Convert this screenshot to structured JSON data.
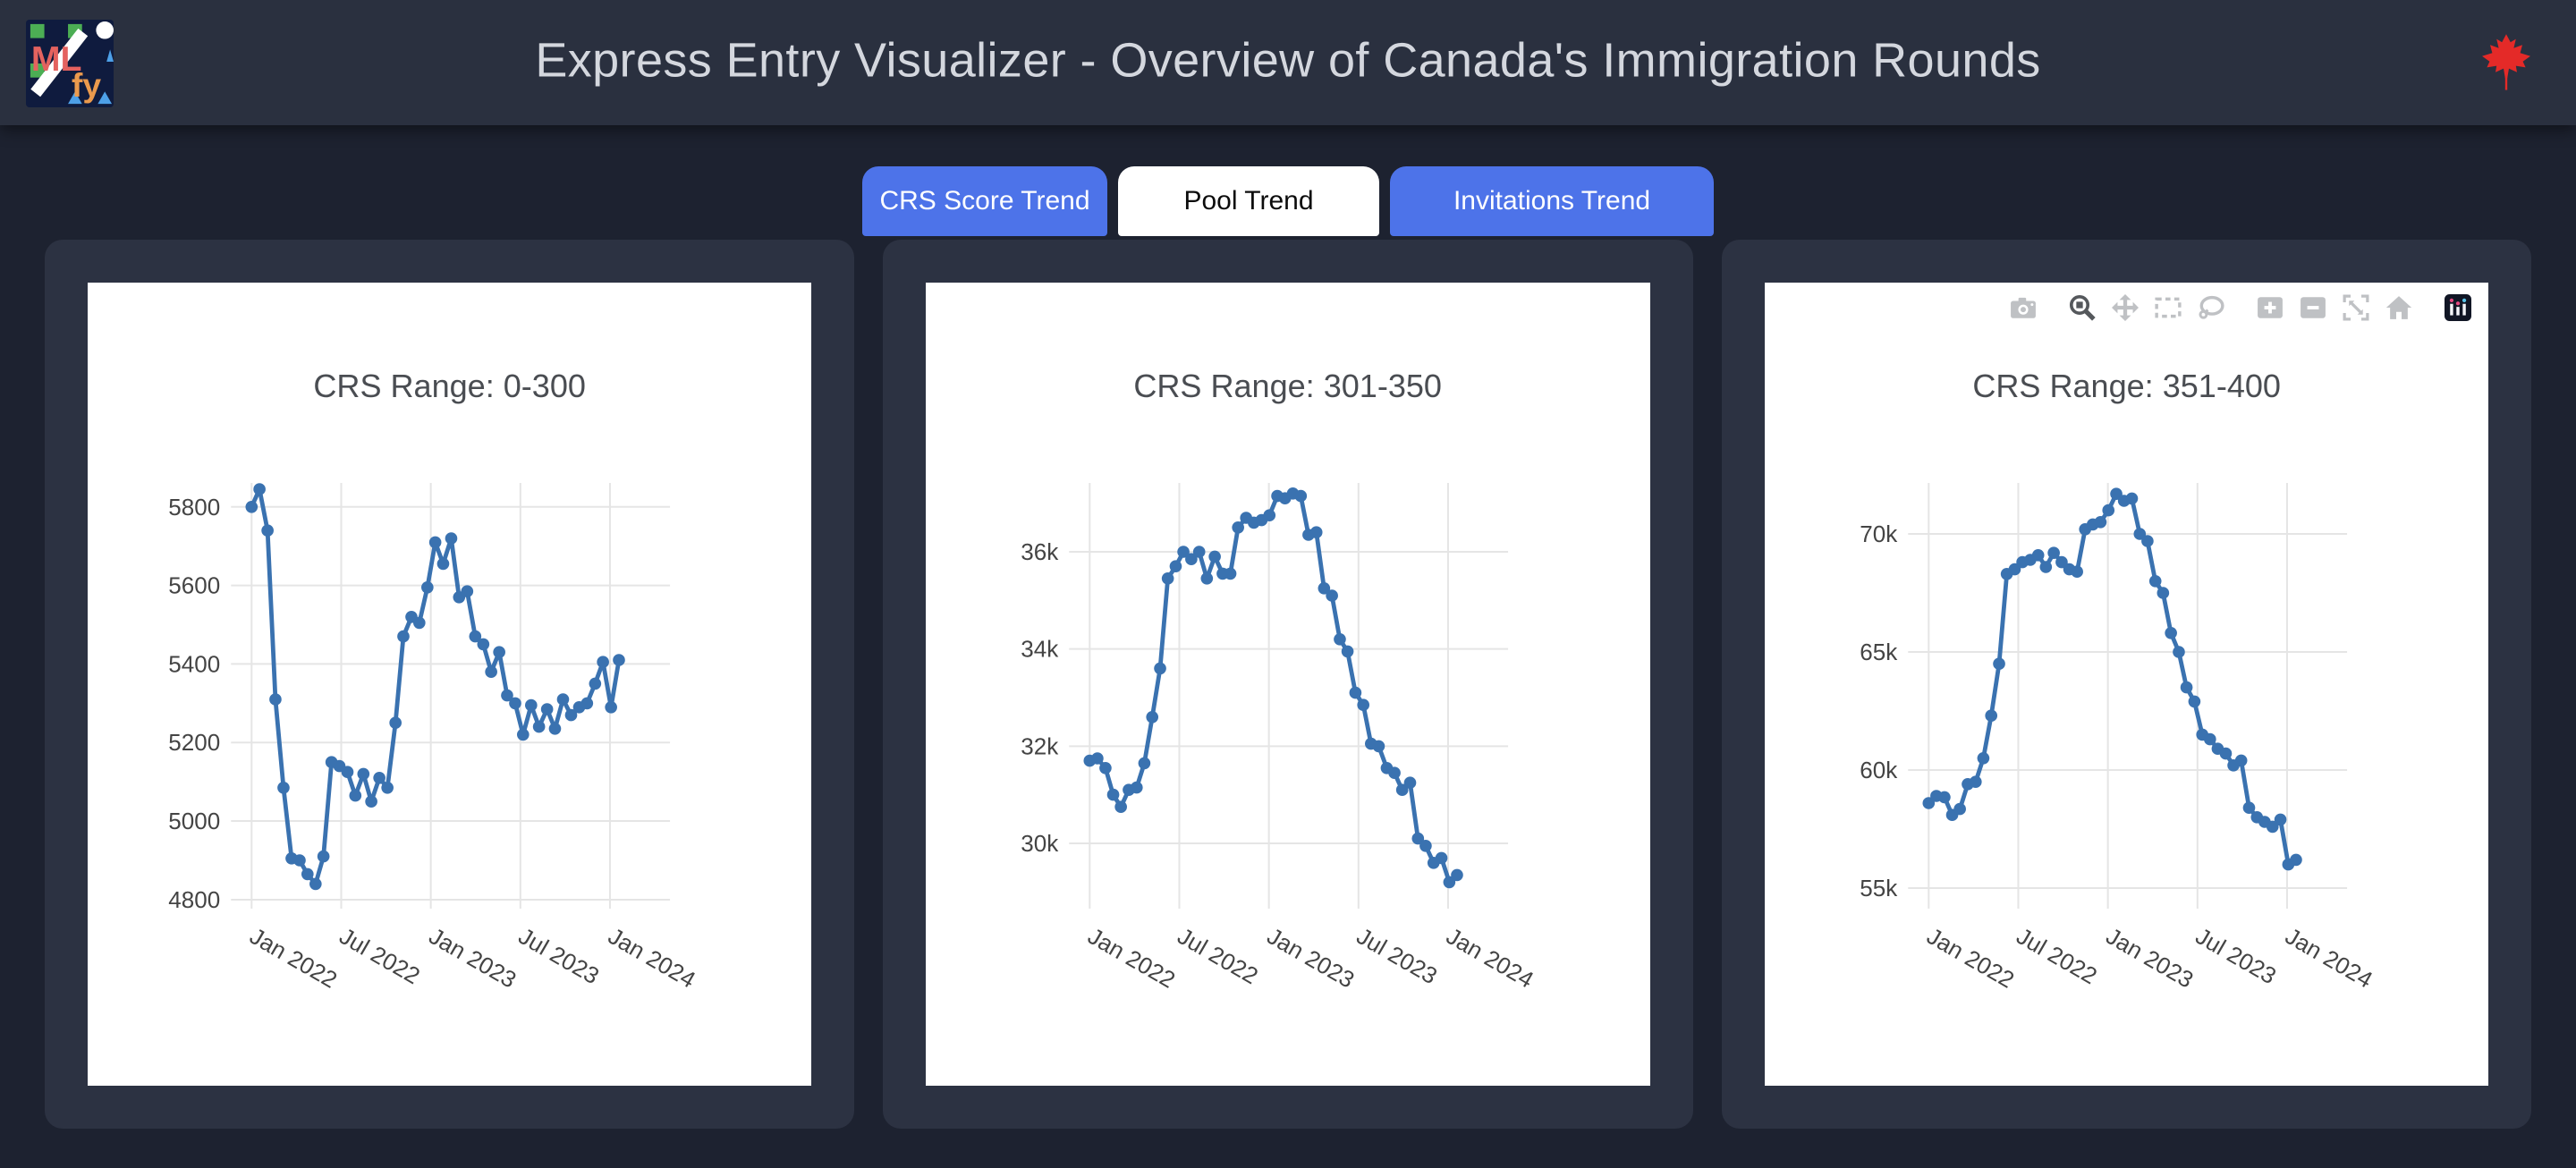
{
  "header": {
    "title": "Express Entry Visualizer - Overview of Canada's Immigration Rounds",
    "logo": {
      "ml": "ML",
      "fy": "fy",
      "bg": "#0f1b3e",
      "ml_color": "#e4625f",
      "fy_color": "#eb9a4d"
    },
    "maple_leaf_color": "#e42a28"
  },
  "tabs": [
    {
      "id": "crs-score-trend",
      "label": "CRS Score Trend",
      "active": false
    },
    {
      "id": "pool-trend",
      "label": "Pool Trend",
      "active": true
    },
    {
      "id": "invitations-trend",
      "label": "Invitations Trend",
      "active": false
    }
  ],
  "colors": {
    "page_bg": "#1d2230",
    "header_bg": "#2a303f",
    "card_bg": "#2c3242",
    "tab_blue": "#4d73e9",
    "line_blue": "#3a72b0",
    "grid": "#e5e5e5"
  },
  "modebar_icons": [
    "camera",
    "zoom",
    "pan",
    "box-select",
    "lasso-select",
    "zoom-in",
    "zoom-out",
    "autoscale",
    "reset-home",
    "plotly-logo"
  ],
  "chart_data": [
    {
      "type": "line",
      "title": "CRS Range: 0-300",
      "x_tick_labels": [
        "Jan 2022",
        "Jul 2022",
        "Jan 2023",
        "Jul 2023",
        "Jan 2024"
      ],
      "x_tick_positions": [
        0,
        6,
        12,
        18,
        24
      ],
      "y_ticks": [
        4800,
        5000,
        5200,
        5400,
        5600,
        5800
      ],
      "y_tick_labels": [
        "4800",
        "5000",
        "5200",
        "5400",
        "5600",
        "5800"
      ],
      "y_range": [
        4777,
        5861
      ],
      "line_color": "#3a72b0",
      "x": [
        0,
        0.53,
        1.07,
        1.6,
        2.14,
        2.67,
        3.21,
        3.74,
        4.28,
        4.81,
        5.35,
        5.88,
        6.42,
        6.95,
        7.49,
        8.02,
        8.56,
        9.09,
        9.63,
        10.16,
        10.7,
        11.23,
        11.77,
        12.3,
        12.83,
        13.37,
        13.9,
        14.44,
        14.97,
        15.51,
        16.04,
        16.58,
        17.11,
        17.65,
        18.18,
        18.72,
        19.25,
        19.79,
        20.32,
        20.86,
        21.39,
        21.93,
        22.46,
        23.0,
        23.53,
        24.07,
        24.6
      ],
      "y": [
        5800,
        5845,
        5740,
        5310,
        5085,
        4905,
        4900,
        4865,
        4840,
        4910,
        5150,
        5140,
        5125,
        5065,
        5120,
        5050,
        5110,
        5085,
        5250,
        5470,
        5520,
        5505,
        5595,
        5710,
        5655,
        5720,
        5570,
        5585,
        5470,
        5450,
        5380,
        5430,
        5320,
        5300,
        5220,
        5295,
        5240,
        5285,
        5235,
        5310,
        5270,
        5290,
        5300,
        5350,
        5405,
        5290,
        5410
      ]
    },
    {
      "type": "line",
      "title": "CRS Range: 301-350",
      "x_tick_labels": [
        "Jan 2022",
        "Jul 2022",
        "Jan 2023",
        "Jul 2023",
        "Jan 2024"
      ],
      "x_tick_positions": [
        0,
        6,
        12,
        18,
        24
      ],
      "y_ticks": [
        30000,
        32000,
        34000,
        36000
      ],
      "y_tick_labels": [
        "30k",
        "32k",
        "34k",
        "36k"
      ],
      "y_range": [
        28657,
        37417
      ],
      "line_color": "#3a72b0",
      "x": [
        0,
        0.52,
        1.05,
        1.57,
        2.09,
        2.62,
        3.14,
        3.66,
        4.19,
        4.71,
        5.23,
        5.76,
        6.28,
        6.8,
        7.33,
        7.85,
        8.37,
        8.9,
        9.42,
        9.94,
        10.47,
        10.99,
        11.51,
        12.04,
        12.56,
        13.08,
        13.61,
        14.13,
        14.65,
        15.18,
        15.7,
        16.22,
        16.75,
        17.27,
        17.79,
        18.32,
        18.84,
        19.36,
        19.89,
        20.41,
        20.93,
        21.46,
        21.98,
        22.5,
        23.03,
        23.55,
        24.08,
        24.6
      ],
      "y": [
        31700,
        31750,
        31550,
        31000,
        30750,
        31100,
        31150,
        31650,
        32600,
        33600,
        35450,
        35700,
        36000,
        35850,
        36000,
        35450,
        35900,
        35550,
        35550,
        36500,
        36700,
        36600,
        36650,
        36750,
        37150,
        37100,
        37200,
        37150,
        36350,
        36400,
        35250,
        35100,
        34200,
        33950,
        33100,
        32850,
        32050,
        32000,
        31550,
        31450,
        31100,
        31250,
        30100,
        29950,
        29600,
        29700,
        29200,
        29350
      ]
    },
    {
      "type": "line",
      "title": "CRS Range: 351-400",
      "x_tick_labels": [
        "Jan 2022",
        "Jul 2022",
        "Jan 2023",
        "Jul 2023",
        "Jan 2024"
      ],
      "x_tick_positions": [
        0,
        6,
        12,
        18,
        24
      ],
      "y_ticks": [
        55000,
        60000,
        65000,
        70000
      ],
      "y_tick_labels": [
        "55k",
        "60k",
        "65k",
        "70k"
      ],
      "y_range": [
        54129,
        72159
      ],
      "line_color": "#3a72b0",
      "x": [
        0,
        0.52,
        1.05,
        1.57,
        2.09,
        2.62,
        3.14,
        3.66,
        4.19,
        4.71,
        5.23,
        5.76,
        6.28,
        6.8,
        7.33,
        7.85,
        8.37,
        8.9,
        9.42,
        9.94,
        10.47,
        10.99,
        11.51,
        12.04,
        12.56,
        13.08,
        13.61,
        14.13,
        14.65,
        15.18,
        15.7,
        16.22,
        16.75,
        17.27,
        17.79,
        18.32,
        18.84,
        19.36,
        19.89,
        20.41,
        20.93,
        21.46,
        21.98,
        22.5,
        23.03,
        23.55,
        24.08,
        24.6
      ],
      "y": [
        58600,
        58900,
        58850,
        58100,
        58350,
        59400,
        59500,
        60500,
        62300,
        64500,
        68300,
        68500,
        68800,
        68900,
        69100,
        68600,
        69200,
        68800,
        68500,
        68400,
        70200,
        70400,
        70500,
        71000,
        71700,
        71400,
        71500,
        70000,
        69700,
        68000,
        67500,
        65800,
        65000,
        63500,
        62900,
        61500,
        61300,
        60900,
        60700,
        60200,
        60400,
        58400,
        58000,
        57800,
        57600,
        57900,
        56000,
        56200
      ]
    }
  ]
}
